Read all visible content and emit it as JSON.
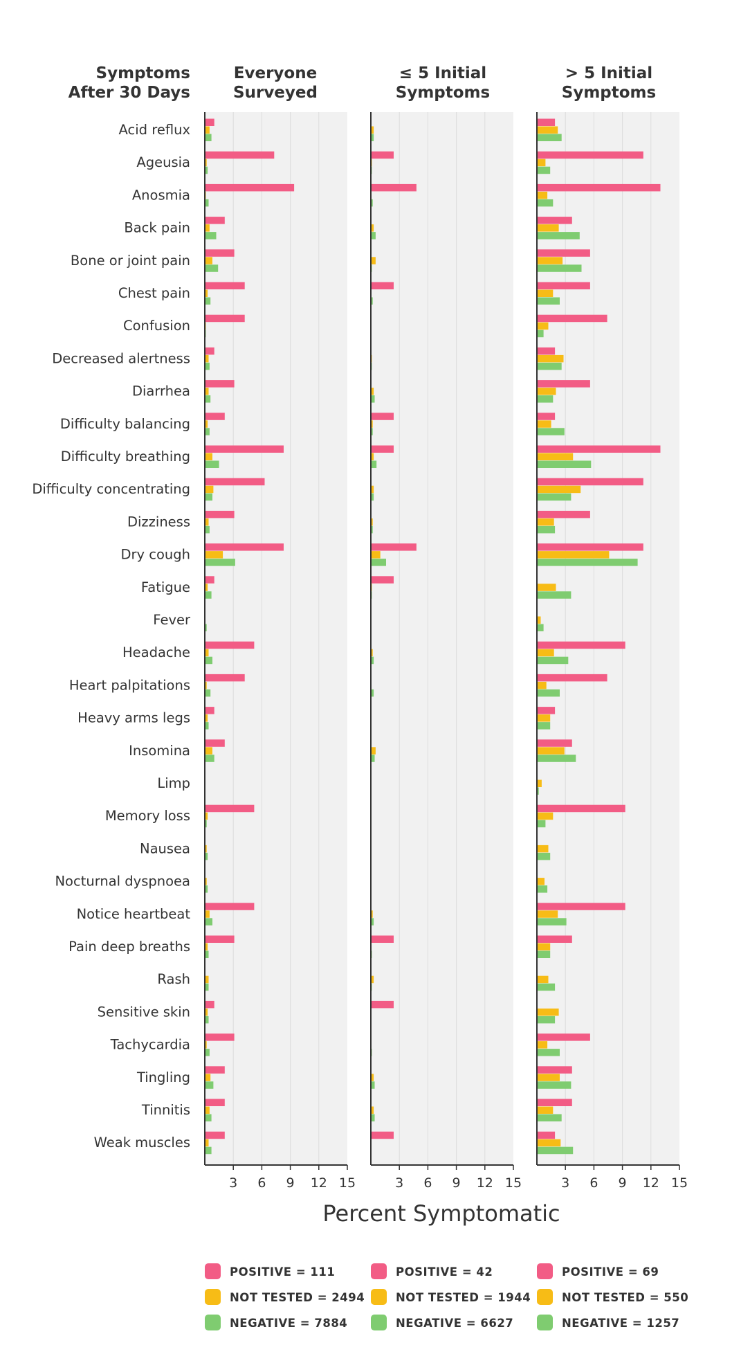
{
  "chart_data": {
    "type": "bar",
    "orientation": "horizontal",
    "row_header": [
      "Symptoms",
      "After 30 Days"
    ],
    "xlabel": "Percent Symptomatic",
    "xlim": [
      0,
      15
    ],
    "xticks": [
      3,
      6,
      9,
      12,
      15
    ],
    "grid": true,
    "colors": {
      "positive": "#f25c85",
      "not_tested": "#f7bc16",
      "negative": "#7fcc70",
      "panel_bg": "#f1f1f1",
      "grid": "#dddddd",
      "axis": "#333333"
    },
    "categories": [
      "Acid reflux",
      "Ageusia",
      "Anosmia",
      "Back pain",
      "Bone or joint pain",
      "Chest pain",
      "Confusion",
      "Decreased alertness",
      "Diarrhea",
      "Difficulty balancing",
      "Difficulty breathing",
      "Difficulty concentrating",
      "Dizziness",
      "Dry cough",
      "Fatigue",
      "Fever",
      "Headache",
      "Heart palpitations",
      "Heavy arms legs",
      "Insomina",
      "Limp",
      "Memory loss",
      "Nausea",
      "Nocturnal dyspnoea",
      "Notice heartbeat",
      "Pain deep breaths",
      "Rash",
      "Sensitive skin",
      "Tachycardia",
      "Tingling",
      "Tinnitis",
      "Weak muscles"
    ],
    "panels": [
      {
        "title": [
          "Everyone",
          "Surveyed"
        ],
        "series": [
          {
            "name": "POSITIVE",
            "label": "POSITIVE = 111",
            "color": "#f25c85",
            "values": [
              1.0,
              7.3,
              9.4,
              2.1,
              3.1,
              4.2,
              4.2,
              1.0,
              3.1,
              2.1,
              8.3,
              6.3,
              3.1,
              8.3,
              1.0,
              0,
              5.2,
              4.2,
              1.0,
              2.1,
              0,
              5.2,
              0,
              0,
              5.2,
              3.1,
              0,
              1.0,
              3.1,
              2.1,
              2.1,
              2.1
            ]
          },
          {
            "name": "NOT TESTED",
            "label": "NOT TESTED = 2494",
            "color": "#f7bc16",
            "values": [
              0.5,
              0.2,
              0.1,
              0.5,
              0.8,
              0.3,
              0.1,
              0.4,
              0.4,
              0.3,
              0.8,
              0.9,
              0.4,
              1.9,
              0.3,
              0,
              0.4,
              0.2,
              0.3,
              0.8,
              0,
              0.3,
              0.2,
              0.2,
              0.5,
              0.3,
              0.4,
              0.3,
              0.2,
              0.6,
              0.5,
              0.4
            ]
          },
          {
            "name": "NEGATIVE",
            "label": "NEGATIVE = 7884",
            "color": "#7fcc70",
            "values": [
              0.7,
              0.3,
              0.4,
              1.2,
              1.4,
              0.6,
              0.1,
              0.5,
              0.6,
              0.5,
              1.5,
              0.8,
              0.5,
              3.2,
              0.7,
              0.2,
              0.8,
              0.6,
              0.4,
              1.0,
              0,
              0.2,
              0.3,
              0.3,
              0.8,
              0.4,
              0.4,
              0.4,
              0.5,
              0.9,
              0.7,
              0.7
            ]
          }
        ]
      },
      {
        "title": [
          "≤ 5 Initial",
          "Symptoms"
        ],
        "series": [
          {
            "name": "POSITIVE",
            "label": "POSITIVE = 42",
            "color": "#f25c85",
            "values": [
              0,
              2.4,
              4.8,
              0,
              0,
              2.4,
              0,
              0,
              0,
              2.4,
              2.4,
              0,
              0,
              4.8,
              2.4,
              0,
              0,
              0,
              0,
              0,
              0,
              0,
              0,
              0,
              0,
              2.4,
              0,
              2.4,
              0,
              0,
              0,
              2.4
            ]
          },
          {
            "name": "NOT TESTED",
            "label": "NOT TESTED = 1944",
            "color": "#f7bc16",
            "values": [
              0.3,
              0.1,
              0,
              0.3,
              0.5,
              0,
              0,
              0.1,
              0.3,
              0.2,
              0.3,
              0.3,
              0.2,
              1.0,
              0.1,
              0,
              0.2,
              0,
              0,
              0.5,
              0,
              0,
              0,
              0,
              0.2,
              0,
              0.3,
              0,
              0,
              0.3,
              0.3,
              0
            ]
          },
          {
            "name": "NEGATIVE",
            "label": "NEGATIVE = 6627",
            "color": "#7fcc70",
            "values": [
              0.3,
              0.1,
              0.2,
              0.5,
              0.1,
              0.2,
              0,
              0.1,
              0.4,
              0.2,
              0.6,
              0.3,
              0.2,
              1.6,
              0.1,
              0,
              0.3,
              0.3,
              0,
              0.4,
              0,
              0,
              0,
              0,
              0.3,
              0.1,
              0.1,
              0,
              0.1,
              0.4,
              0.4,
              0
            ]
          }
        ]
      },
      {
        "title": [
          "> 5 Initial",
          "Symptoms"
        ],
        "series": [
          {
            "name": "POSITIVE",
            "label": "POSITIVE = 69",
            "color": "#f25c85",
            "values": [
              1.9,
              11.2,
              13.0,
              3.7,
              5.6,
              5.6,
              7.4,
              1.9,
              5.6,
              1.9,
              13.0,
              11.2,
              5.6,
              11.2,
              0,
              0,
              9.3,
              7.4,
              1.9,
              3.7,
              0,
              9.3,
              0,
              0,
              9.3,
              3.7,
              0,
              0,
              5.6,
              3.7,
              3.7,
              1.9
            ]
          },
          {
            "name": "NOT TESTED",
            "label": "NOT TESTED = 550",
            "color": "#f7bc16",
            "values": [
              2.2,
              0.9,
              1.1,
              2.3,
              2.7,
              1.7,
              1.2,
              2.8,
              2.0,
              1.5,
              3.8,
              4.6,
              1.8,
              7.6,
              2.0,
              0.4,
              1.8,
              1.0,
              1.4,
              2.9,
              0.5,
              1.7,
              1.2,
              0.8,
              2.2,
              1.4,
              1.2,
              2.3,
              1.1,
              2.4,
              1.7,
              2.5
            ]
          },
          {
            "name": "NEGATIVE",
            "label": "NEGATIVE = 1257",
            "color": "#7fcc70",
            "values": [
              2.6,
              1.4,
              1.7,
              4.5,
              4.7,
              2.4,
              0.7,
              2.6,
              1.7,
              2.9,
              5.7,
              3.6,
              1.9,
              10.6,
              3.6,
              0.7,
              3.3,
              2.4,
              1.4,
              4.1,
              0.2,
              0.9,
              1.4,
              1.1,
              3.1,
              1.4,
              1.9,
              1.9,
              2.4,
              3.6,
              2.6,
              3.8
            ]
          }
        ]
      }
    ]
  }
}
